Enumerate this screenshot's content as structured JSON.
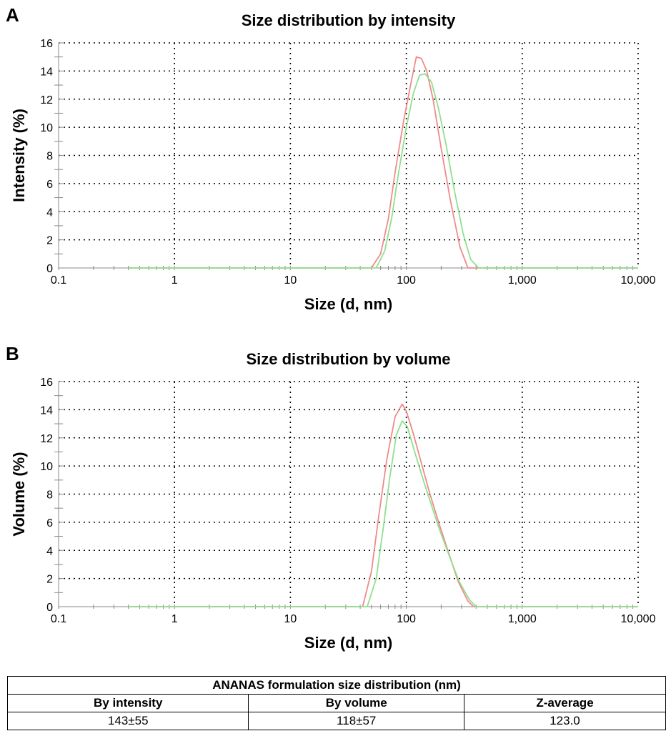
{
  "panels": {
    "a_label": "A",
    "b_label": "B"
  },
  "colors": {
    "series1": "#f08a8a",
    "series2": "#8fe08f",
    "grid": "#000000"
  },
  "chart_data": [
    {
      "type": "line",
      "title": "Size distribution by intensity",
      "xlabel": "Size (d, nm)",
      "ylabel": "Intensity (%)",
      "xscale": "log",
      "xlim": [
        0.1,
        10000
      ],
      "ylim": [
        0,
        16
      ],
      "xticks": [
        0.1,
        1,
        10,
        100,
        1000,
        10000
      ],
      "xtick_labels": [
        "0.1",
        "1",
        "10",
        "100",
        "1,000",
        "10,000"
      ],
      "yticks": [
        0,
        2,
        4,
        6,
        8,
        10,
        12,
        14,
        16
      ],
      "ytick_labels": [
        "0",
        "2",
        "4",
        "6",
        "8",
        "10",
        "12",
        "14",
        "16"
      ],
      "grid": true,
      "series": [
        {
          "color": "#f08a8a",
          "x": [
            0.4,
            50,
            60,
            70,
            80,
            95,
            110,
            122,
            135,
            150,
            170,
            200,
            240,
            290,
            340,
            10000
          ],
          "y": [
            0,
            0,
            1.0,
            3.5,
            6.8,
            10.5,
            13.2,
            15.0,
            14.9,
            14.0,
            12.0,
            8.5,
            4.8,
            1.5,
            0,
            0
          ]
        },
        {
          "color": "#8fe08f",
          "x": [
            0.4,
            55,
            65,
            75,
            85,
            100,
            115,
            130,
            145,
            165,
            190,
            220,
            260,
            310,
            360,
            420,
            10000
          ],
          "y": [
            0,
            0,
            1.2,
            3.6,
            6.6,
            10.0,
            12.4,
            13.7,
            13.8,
            13.2,
            11.3,
            8.8,
            5.5,
            2.4,
            0.6,
            0,
            0
          ]
        }
      ]
    },
    {
      "type": "line",
      "title": "Size distribution by volume",
      "xlabel": "Size (d, nm)",
      "ylabel": "Volume (%)",
      "xscale": "log",
      "xlim": [
        0.1,
        10000
      ],
      "ylim": [
        0,
        16
      ],
      "xticks": [
        0.1,
        1,
        10,
        100,
        1000,
        10000
      ],
      "xtick_labels": [
        "0.1",
        "1",
        "10",
        "100",
        "1,000",
        "10,000"
      ],
      "yticks": [
        0,
        2,
        4,
        6,
        8,
        10,
        12,
        14,
        16
      ],
      "ytick_labels": [
        "0",
        "2",
        "4",
        "6",
        "8",
        "10",
        "12",
        "14",
        "16"
      ],
      "grid": true,
      "series": [
        {
          "color": "#f08a8a",
          "x": [
            0.4,
            42,
            50,
            58,
            68,
            80,
            92,
            100,
            115,
            135,
            160,
            190,
            230,
            280,
            340,
            380,
            10000
          ],
          "y": [
            0,
            0,
            2.5,
            6.5,
            10.5,
            13.5,
            14.4,
            13.9,
            12.3,
            10.2,
            8.0,
            6.0,
            3.9,
            1.8,
            0.4,
            0,
            0
          ]
        },
        {
          "color": "#8fe08f",
          "x": [
            0.4,
            46,
            55,
            63,
            72,
            82,
            92,
            102,
            118,
            140,
            165,
            195,
            235,
            285,
            350,
            400,
            10000
          ],
          "y": [
            0,
            0,
            2.0,
            5.5,
            9.2,
            12.2,
            13.2,
            12.8,
            11.0,
            9.0,
            7.2,
            5.4,
            3.6,
            1.8,
            0.5,
            0,
            0
          ]
        }
      ]
    }
  ],
  "table": {
    "title": "ANANAS formulation size distribution (nm)",
    "headers": [
      "By intensity",
      "By volume",
      "Z-average"
    ],
    "values": [
      "143±55",
      "118±57",
      "123.0"
    ]
  }
}
